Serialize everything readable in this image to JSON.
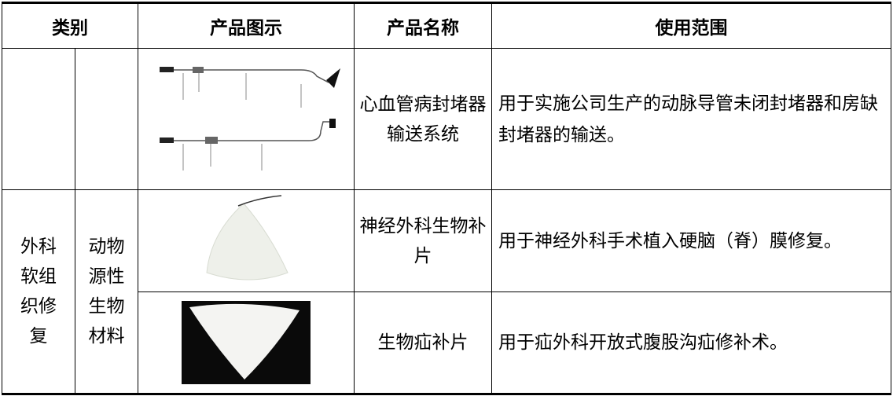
{
  "table": {
    "header": [
      "类别",
      "产品图示",
      "产品名称",
      "使用范围"
    ],
    "rows": [
      {
        "name": "心血管病封堵器输送系统",
        "scope": "用于实施公司生产的动脉导管未闭封堵器和房缺封堵器的输送。"
      },
      {
        "name": "神经外科生物补片",
        "scope": "用于神经外科手术植入硬脑（脊）膜修复。"
      },
      {
        "name": "生物疝补片",
        "scope": "用于疝外科开放式腹股沟疝修补术。"
      }
    ],
    "group": [
      "外科软组织修复",
      "动物源性生物材料"
    ]
  }
}
